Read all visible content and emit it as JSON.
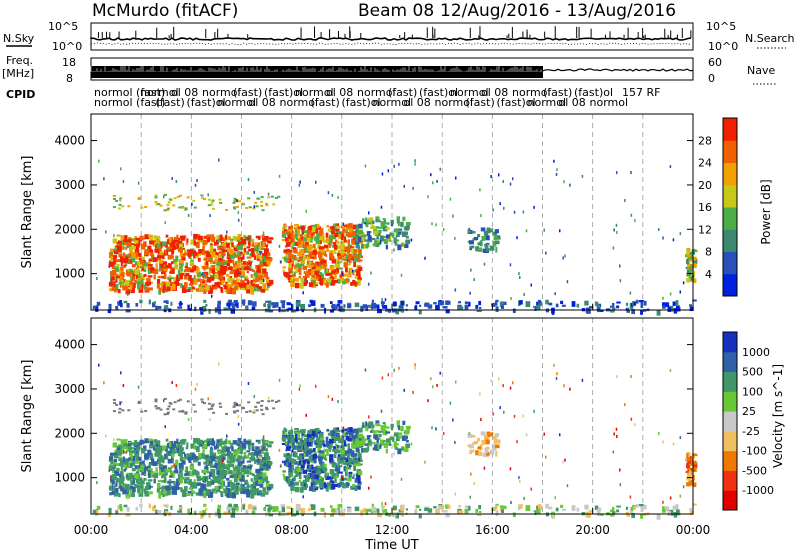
{
  "header": {
    "station": "McMurdo (fitACF)",
    "beam_label": "Beam 08",
    "date_range": "12/Aug/2016 - 13/Aug/2016"
  },
  "status_panels": {
    "nsky_label": "N.Sky",
    "nsearch_label": "N.Search",
    "nsky_ticks": [
      "10^5",
      "10^0"
    ],
    "nsearch_ticks": [
      "10^5",
      "10^0"
    ],
    "freq_label_1": "Freq.",
    "freq_label_2": "[MHz]",
    "freq_ticks": [
      "18",
      "8"
    ],
    "nave_label": "Nave",
    "nave_ticks": [
      "60",
      "0"
    ],
    "cpid_label": "CPID",
    "cpid_row1": "normol (fast)",
    "cpid_row2": "normol (fast)",
    "cpid_late": "157 RF"
  },
  "colors": {
    "power_scale": [
      "#0020e0",
      "#2850b8",
      "#3c8870",
      "#4cae48",
      "#c8c818",
      "#f0a000",
      "#f06000",
      "#f02000"
    ],
    "velocity_scale": [
      "#e00000",
      "#f03010",
      "#f07800",
      "#f0c060",
      "#c8c8c8",
      "#68c838",
      "#409868",
      "#3060a8",
      "#1830c0"
    ],
    "ground_scatter": "#7a7a7a"
  },
  "chart_data": [
    {
      "type": "heatmap",
      "name": "power",
      "xlabel": "",
      "ylabel": "Slant Range [km]",
      "xlim": [
        0,
        24
      ],
      "ylim": [
        180,
        4600
      ],
      "yticks": [
        1000,
        2000,
        3000,
        4000
      ],
      "grid": "dashed vertical lines every 2 hours",
      "colorbar": {
        "label": "Power [dB]",
        "range": [
          0,
          32
        ],
        "ticks": [
          4,
          8,
          12,
          16,
          20,
          24,
          28
        ]
      },
      "regions": [
        {
          "t": [
            0.7,
            7.1
          ],
          "r": [
            650,
            1900
          ],
          "level": "high",
          "note": "strong scatter, 8-30 dB"
        },
        {
          "t": [
            7.6,
            10.7
          ],
          "r": [
            780,
            2150
          ],
          "level": "high"
        },
        {
          "t": [
            10.5,
            12.6
          ],
          "r": [
            1650,
            2300
          ],
          "level": "medium"
        },
        {
          "t": [
            15.0,
            16.2
          ],
          "r": [
            1550,
            2050
          ],
          "level": "medium"
        },
        {
          "t": [
            23.7,
            24.0
          ],
          "r": [
            880,
            1650
          ],
          "level": "medium"
        },
        {
          "t": [
            0.0,
            24.0
          ],
          "r": [
            180,
            420
          ],
          "level": "low",
          "note": "near-range echoes"
        }
      ]
    },
    {
      "type": "heatmap",
      "name": "velocity",
      "xlabel": "Time UT",
      "ylabel": "Slant Range [km]",
      "xlim": [
        0,
        24
      ],
      "ylim": [
        180,
        4600
      ],
      "xticks": [
        "00:00",
        "04:00",
        "08:00",
        "12:00",
        "16:00",
        "20:00",
        "00:00"
      ],
      "yticks": [
        1000,
        2000,
        3000,
        4000
      ],
      "colorbar": {
        "label": "Velocity [m s^-1]",
        "ticks": [
          "1000",
          "500",
          "100",
          "25",
          "-25",
          "-100",
          "-500",
          "-1000"
        ]
      },
      "regions": [
        {
          "t": [
            0.7,
            7.1
          ],
          "r": [
            650,
            1900
          ],
          "velocity": "mostly +100 to +500 m/s"
        },
        {
          "t": [
            7.6,
            10.7
          ],
          "r": [
            780,
            2150
          ],
          "velocity": "mostly +100 to +1000 m/s"
        },
        {
          "t": [
            10.5,
            12.6
          ],
          "r": [
            1650,
            2300
          ],
          "velocity": "about +100 m/s"
        },
        {
          "t": [
            15.0,
            16.2
          ],
          "r": [
            1550,
            2050
          ],
          "velocity": "about -100 m/s"
        },
        {
          "t": [
            23.7,
            24.0
          ],
          "r": [
            880,
            1650
          ],
          "velocity": "about -500 m/s"
        }
      ]
    }
  ]
}
